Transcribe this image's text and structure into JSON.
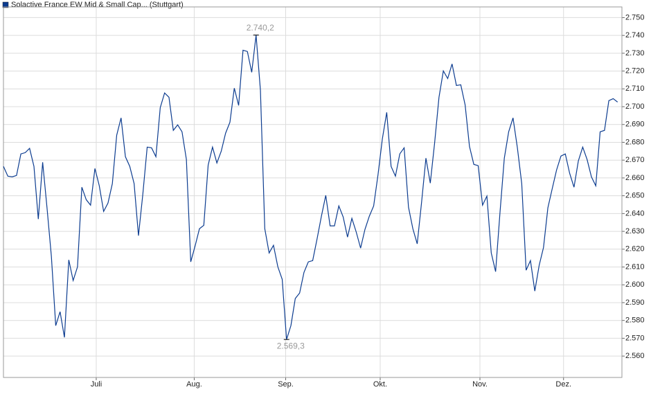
{
  "chart_data": {
    "type": "line",
    "series": [
      {
        "name": "Solactive France EW Mid & Small Cap... (Stuttgart)",
        "color": "#0b3b8f",
        "values": [
          2666.5,
          2661.0,
          2660.6,
          2661.4,
          2673.5,
          2674.2,
          2676.6,
          2666.5,
          2636.9,
          2668.8,
          2643.2,
          2616.0,
          2577.1,
          2584.9,
          2570.5,
          2614.0,
          2602.4,
          2610.1,
          2654.8,
          2647.8,
          2644.7,
          2665.3,
          2655.6,
          2641.2,
          2645.9,
          2656.8,
          2684.0,
          2693.7,
          2671.9,
          2666.5,
          2656.8,
          2627.6,
          2650.9,
          2677.3,
          2676.9,
          2671.9,
          2699.5,
          2707.7,
          2705.3,
          2686.7,
          2689.8,
          2685.9,
          2670.4,
          2612.9,
          2621.8,
          2631.5,
          2633.4,
          2667.2,
          2677.3,
          2668.4,
          2675.0,
          2685.1,
          2691.3,
          2710.4,
          2700.7,
          2731.7,
          2731.0,
          2719.3,
          2740.2,
          2709.2,
          2631.5,
          2617.9,
          2622.2,
          2610.1,
          2603.1,
          2569.3,
          2577.1,
          2592.3,
          2595.4,
          2607.0,
          2612.9,
          2613.6,
          2625.7,
          2638.5,
          2650.2,
          2633.1,
          2633.1,
          2644.3,
          2638.1,
          2626.8,
          2637.3,
          2629.6,
          2620.6,
          2631.1,
          2638.5,
          2644.3,
          2661.8,
          2682.0,
          2696.8,
          2666.5,
          2661.0,
          2673.5,
          2676.9,
          2643.6,
          2631.5,
          2623.0,
          2646.3,
          2671.1,
          2657.1,
          2679.7,
          2705.3,
          2720.1,
          2715.8,
          2724.0,
          2711.9,
          2712.3,
          2701.0,
          2677.7,
          2667.6,
          2666.9,
          2644.7,
          2649.8,
          2617.9,
          2607.4,
          2640.4,
          2671.1,
          2685.9,
          2693.7,
          2676.9,
          2656.8,
          2608.2,
          2613.6,
          2596.5,
          2610.9,
          2621.0,
          2643.2,
          2654.0,
          2664.5,
          2672.3,
          2673.5,
          2662.6,
          2654.8,
          2669.6,
          2677.3,
          2670.4,
          2660.6,
          2655.6,
          2685.9,
          2686.7,
          2703.4,
          2704.5,
          2702.6
        ]
      }
    ],
    "xlim": [
      0,
      142
    ],
    "xticks": [
      {
        "value": 21.3,
        "label": "Juli"
      },
      {
        "value": 43.8,
        "label": "Aug."
      },
      {
        "value": 64.8,
        "label": "Sep."
      },
      {
        "value": 86.5,
        "label": "Okt."
      },
      {
        "value": 109.4,
        "label": "Nov."
      },
      {
        "value": 128.6,
        "label": "Dez."
      }
    ],
    "ylim": [
      2548,
      2756
    ],
    "yticks": [
      {
        "value": 2560,
        "label": "2.560"
      },
      {
        "value": 2570,
        "label": "2.570"
      },
      {
        "value": 2580,
        "label": "2.580"
      },
      {
        "value": 2590,
        "label": "2.590"
      },
      {
        "value": 2600,
        "label": "2.600"
      },
      {
        "value": 2610,
        "label": "2.610"
      },
      {
        "value": 2620,
        "label": "2.620"
      },
      {
        "value": 2630,
        "label": "2.630"
      },
      {
        "value": 2640,
        "label": "2.640"
      },
      {
        "value": 2650,
        "label": "2.650"
      },
      {
        "value": 2660,
        "label": "2.660"
      },
      {
        "value": 2670,
        "label": "2.670"
      },
      {
        "value": 2680,
        "label": "2.680"
      },
      {
        "value": 2690,
        "label": "2.690"
      },
      {
        "value": 2700,
        "label": "2.700"
      },
      {
        "value": 2710,
        "label": "2.710"
      },
      {
        "value": 2720,
        "label": "2.720"
      },
      {
        "value": 2730,
        "label": "2.730"
      },
      {
        "value": 2740,
        "label": "2.740"
      },
      {
        "value": 2750,
        "label": "2.750"
      }
    ],
    "grid": true,
    "annotations": [
      {
        "x": 58,
        "value": 2740.2,
        "label": "2.740,2",
        "position": "above"
      },
      {
        "x": 65,
        "value": 2569.3,
        "label": "2.569,3",
        "position": "below"
      }
    ]
  }
}
